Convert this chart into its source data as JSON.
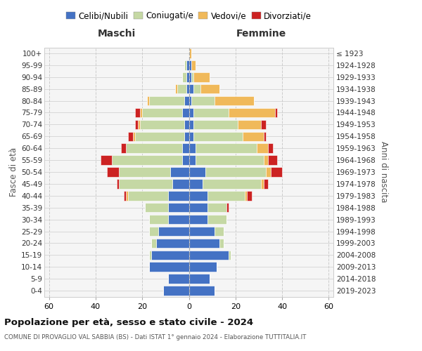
{
  "age_groups": [
    "0-4",
    "5-9",
    "10-14",
    "15-19",
    "20-24",
    "25-29",
    "30-34",
    "35-39",
    "40-44",
    "45-49",
    "50-54",
    "55-59",
    "60-64",
    "65-69",
    "70-74",
    "75-79",
    "80-84",
    "85-89",
    "90-94",
    "95-99",
    "100+"
  ],
  "birth_years": [
    "2019-2023",
    "2014-2018",
    "2009-2013",
    "2004-2008",
    "1999-2003",
    "1994-1998",
    "1989-1993",
    "1984-1988",
    "1979-1983",
    "1974-1978",
    "1969-1973",
    "1964-1968",
    "1959-1963",
    "1954-1958",
    "1949-1953",
    "1944-1948",
    "1939-1943",
    "1934-1938",
    "1929-1933",
    "1924-1928",
    "≤ 1923"
  ],
  "maschi": {
    "celibi": [
      11,
      9,
      17,
      16,
      14,
      13,
      9,
      9,
      9,
      7,
      8,
      3,
      3,
      2,
      2,
      3,
      2,
      1,
      1,
      1,
      0
    ],
    "coniugati": [
      0,
      0,
      0,
      1,
      2,
      4,
      8,
      10,
      17,
      23,
      22,
      30,
      24,
      21,
      19,
      17,
      15,
      4,
      2,
      1,
      0
    ],
    "vedovi": [
      0,
      0,
      0,
      0,
      0,
      0,
      0,
      0,
      1,
      0,
      0,
      0,
      0,
      1,
      1,
      1,
      1,
      1,
      0,
      0,
      0
    ],
    "divorziati": [
      0,
      0,
      0,
      0,
      0,
      0,
      0,
      0,
      1,
      1,
      5,
      5,
      2,
      2,
      1,
      2,
      0,
      0,
      0,
      0,
      0
    ]
  },
  "femmine": {
    "nubili": [
      11,
      9,
      12,
      17,
      13,
      11,
      8,
      8,
      8,
      6,
      7,
      3,
      3,
      2,
      2,
      2,
      1,
      2,
      1,
      1,
      0
    ],
    "coniugate": [
      0,
      0,
      0,
      1,
      2,
      4,
      8,
      8,
      16,
      25,
      26,
      29,
      26,
      21,
      19,
      15,
      10,
      3,
      1,
      0,
      0
    ],
    "vedove": [
      0,
      0,
      0,
      0,
      0,
      0,
      0,
      0,
      1,
      1,
      2,
      2,
      5,
      9,
      10,
      20,
      17,
      8,
      7,
      2,
      1
    ],
    "divorziate": [
      0,
      0,
      0,
      0,
      0,
      0,
      0,
      1,
      2,
      2,
      5,
      4,
      2,
      1,
      2,
      1,
      0,
      0,
      0,
      0,
      0
    ]
  },
  "colors": {
    "celibi_nubili": "#4472c4",
    "coniugati": "#c5d8a4",
    "vedovi": "#f0b95a",
    "divorziati": "#cc2222"
  },
  "xlim": 62,
  "title1": "Popolazione per età, sesso e stato civile - 2024",
  "title2": "COMUNE DI PROVAGLIO VAL SABBIA (BS) - Dati ISTAT 1° gennaio 2024 - Elaborazione TUTTITALIA.IT",
  "xlabel_left": "Maschi",
  "xlabel_right": "Femmine",
  "ylabel_left": "Fasce di età",
  "ylabel_right": "Anni di nascita",
  "legend_labels": [
    "Celibi/Nubili",
    "Coniugati/e",
    "Vedovi/e",
    "Divorziati/e"
  ],
  "bg_color": "#ffffff",
  "grid_color": "#cccccc",
  "plot_bg": "#f5f5f5"
}
